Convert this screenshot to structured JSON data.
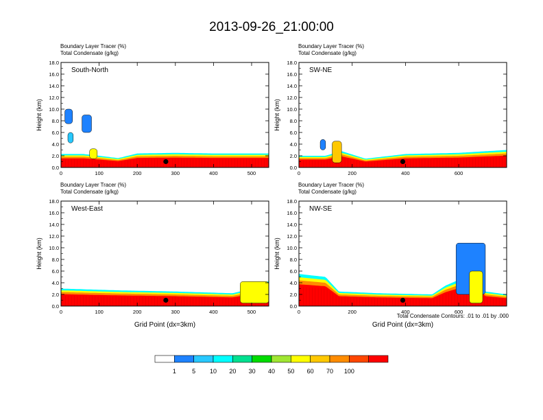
{
  "title": "2013-09-26_21:00:00",
  "footnote": "Total Condensate Contours: .01 to .01 by .000",
  "colorbar": {
    "labels": [
      "1",
      "5",
      "10",
      "20",
      "30",
      "40",
      "50",
      "60",
      "70",
      "100"
    ],
    "colors": [
      "#ffffff",
      "#1e82ff",
      "#28c8ff",
      "#00ffff",
      "#00e090",
      "#00dc00",
      "#a0e632",
      "#ffff00",
      "#ffc800",
      "#ff8c00",
      "#ff4600",
      "#ff0000"
    ]
  },
  "chart_data": [
    {
      "type": "heatmap",
      "panel_label": "South-North",
      "caption_line1": "Boundary Layer Tracer    (%)",
      "caption_line2": "Total Condensate   (g/kg)",
      "ylabel": "Height (km)",
      "xlabel": "",
      "xlim": [
        0,
        545
      ],
      "ylim": [
        0,
        18
      ],
      "xticks": [
        0,
        100,
        200,
        300,
        400,
        500
      ],
      "yticks": [
        "0.0",
        "2.0",
        "4.0",
        "6.0",
        "8.0",
        "10.0",
        "12.0",
        "14.0",
        "16.0",
        "18.0"
      ],
      "boundary_layer_top_km": [
        [
          0,
          2.3
        ],
        [
          60,
          2.3
        ],
        [
          100,
          2.0
        ],
        [
          150,
          1.6
        ],
        [
          200,
          2.4
        ],
        [
          300,
          2.5
        ],
        [
          400,
          2.4
        ],
        [
          545,
          2.4
        ]
      ],
      "cloud_features": [
        {
          "x_range": [
            10,
            30
          ],
          "y_range": [
            7.5,
            10.0
          ],
          "level": "5"
        },
        {
          "x_range": [
            18,
            32
          ],
          "y_range": [
            4.2,
            6.0
          ],
          "level": "10"
        },
        {
          "x_range": [
            55,
            80
          ],
          "y_range": [
            6.0,
            9.0
          ],
          "level": "5"
        },
        {
          "x_range": [
            75,
            95
          ],
          "y_range": [
            1.5,
            3.2
          ],
          "level": "50"
        }
      ],
      "marker": {
        "x": 275,
        "y": 1.0
      }
    },
    {
      "type": "heatmap",
      "panel_label": "SW-NE",
      "caption_line1": "Boundary Layer Tracer    (%)",
      "caption_line2": "Total Condensate   (g/kg)",
      "ylabel": "Height (km)",
      "xlabel": "",
      "xlim": [
        0,
        780
      ],
      "ylim": [
        0,
        18
      ],
      "xticks": [
        0,
        200,
        400,
        600
      ],
      "yticks": [
        "0.0",
        "2.0",
        "4.0",
        "6.0",
        "8.0",
        "10.0",
        "12.0",
        "14.0",
        "16.0",
        "18.0"
      ],
      "boundary_layer_top_km": [
        [
          0,
          2.0
        ],
        [
          100,
          2.0
        ],
        [
          160,
          2.8
        ],
        [
          250,
          1.5
        ],
        [
          400,
          2.3
        ],
        [
          600,
          2.5
        ],
        [
          780,
          3.0
        ]
      ],
      "cloud_features": [
        {
          "x_range": [
            80,
            100
          ],
          "y_range": [
            3.0,
            4.8
          ],
          "level": "5"
        },
        {
          "x_range": [
            125,
            160
          ],
          "y_range": [
            0.8,
            4.5
          ],
          "level": "60"
        }
      ],
      "marker": {
        "x": 390,
        "y": 1.0
      }
    },
    {
      "type": "heatmap",
      "panel_label": "West-East",
      "caption_line1": "Boundary Layer Tracer    (%)",
      "caption_line2": "Total Condensate   (g/kg)",
      "ylabel": "Height (km)",
      "xlabel": "Grid Point (dx=3km)",
      "xlim": [
        0,
        545
      ],
      "ylim": [
        0,
        18
      ],
      "xticks": [
        0,
        100,
        200,
        300,
        400,
        500
      ],
      "yticks": [
        "0.0",
        "2.0",
        "4.0",
        "6.0",
        "8.0",
        "10.0",
        "12.0",
        "14.0",
        "16.0",
        "18.0"
      ],
      "boundary_layer_top_km": [
        [
          0,
          3.0
        ],
        [
          150,
          2.7
        ],
        [
          300,
          2.5
        ],
        [
          450,
          2.2
        ],
        [
          500,
          3.0
        ],
        [
          545,
          4.3
        ]
      ],
      "cloud_features": [
        {
          "x_range": [
            470,
            545
          ],
          "y_range": [
            0.5,
            4.2
          ],
          "level": "50"
        }
      ],
      "marker": {
        "x": 275,
        "y": 1.0
      }
    },
    {
      "type": "heatmap",
      "panel_label": "NW-SE",
      "caption_line1": "Boundary Layer Tracer    (%)",
      "caption_line2": "Total Condensate   (g/kg)",
      "ylabel": "Height (km)",
      "xlabel": "Grid Point (dx=3km)",
      "xlim": [
        0,
        780
      ],
      "ylim": [
        0,
        18
      ],
      "xticks": [
        0,
        200,
        400,
        600
      ],
      "yticks": [
        "0.0",
        "2.0",
        "4.0",
        "6.0",
        "8.0",
        "10.0",
        "12.0",
        "14.0",
        "16.0",
        "18.0"
      ],
      "boundary_layer_top_km": [
        [
          0,
          5.5
        ],
        [
          100,
          5.0
        ],
        [
          150,
          2.5
        ],
        [
          300,
          2.2
        ],
        [
          500,
          2.0
        ],
        [
          550,
          3.5
        ],
        [
          650,
          5.5
        ],
        [
          700,
          2.5
        ],
        [
          780,
          2.0
        ]
      ],
      "cloud_features": [
        {
          "x_range": [
            590,
            700
          ],
          "y_range": [
            2.0,
            10.8
          ],
          "level": "5"
        },
        {
          "x_range": [
            640,
            690
          ],
          "y_range": [
            0.5,
            6.0
          ],
          "level": "50"
        }
      ],
      "marker": {
        "x": 390,
        "y": 1.0
      }
    }
  ]
}
